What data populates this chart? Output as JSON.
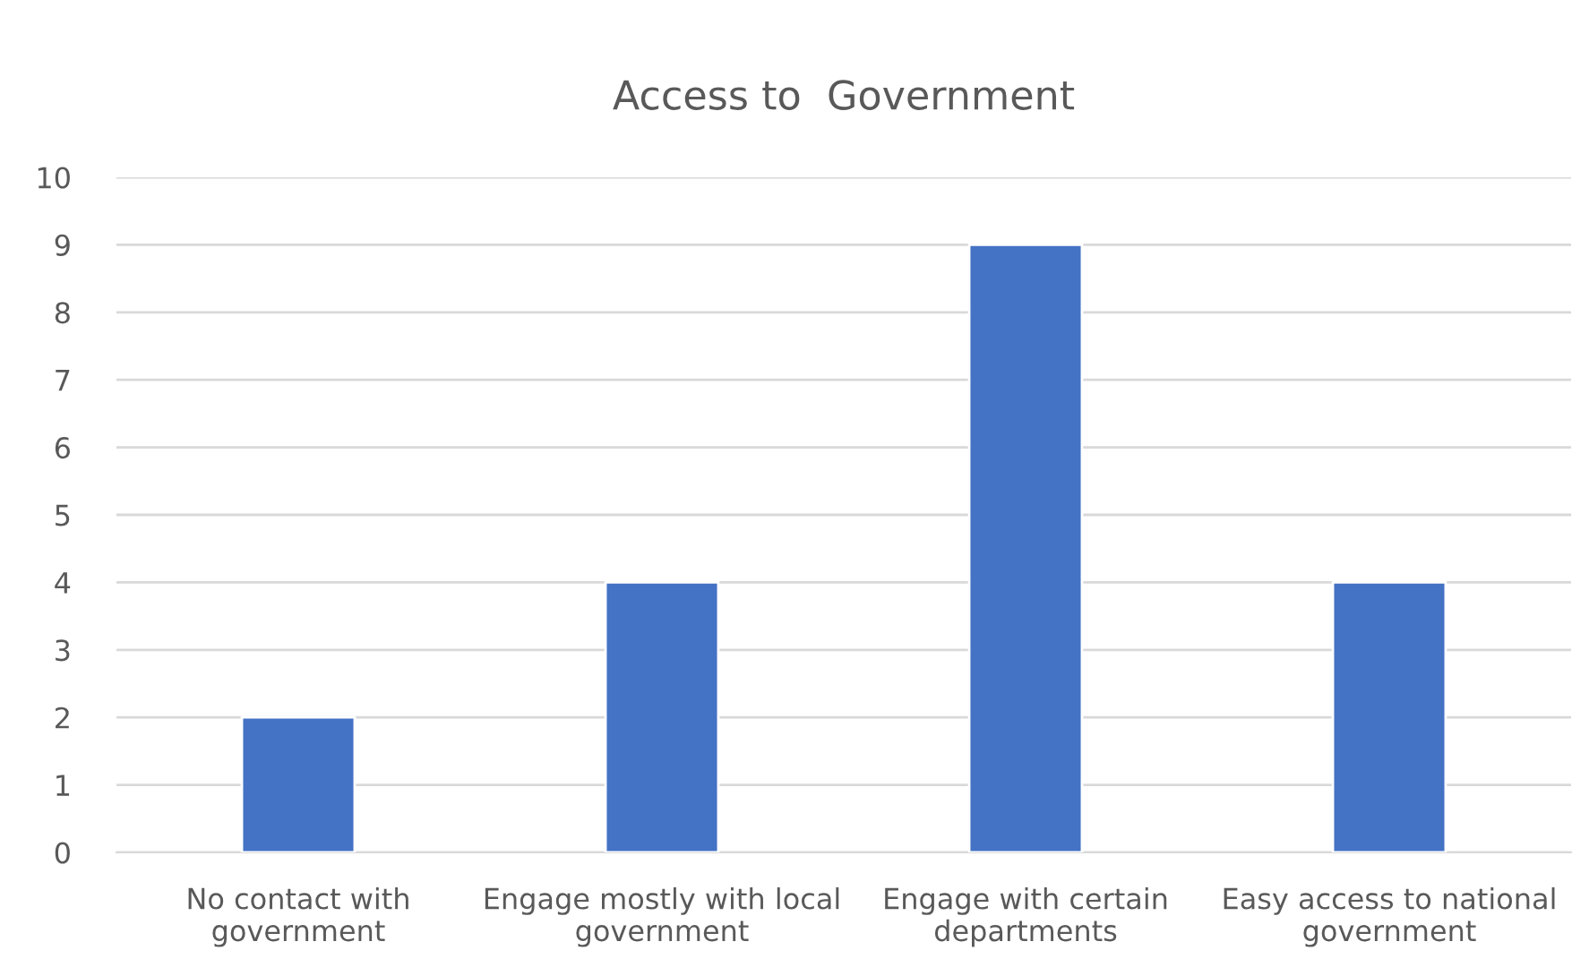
{
  "chart_data": {
    "type": "bar",
    "title": "Access to  Government",
    "categories": [
      "No contact with\ngovernment",
      "Engage mostly with local\ngovernment",
      "Engage with certain\ndepartments",
      "Easy access to national\ngovernment"
    ],
    "values": [
      2,
      4,
      9,
      4
    ],
    "color": "#4472c4",
    "ylim": [
      0,
      10
    ],
    "yticks": [
      0,
      1,
      2,
      3,
      4,
      5,
      6,
      7,
      8,
      9,
      10
    ],
    "grid": "y",
    "legend": false
  }
}
